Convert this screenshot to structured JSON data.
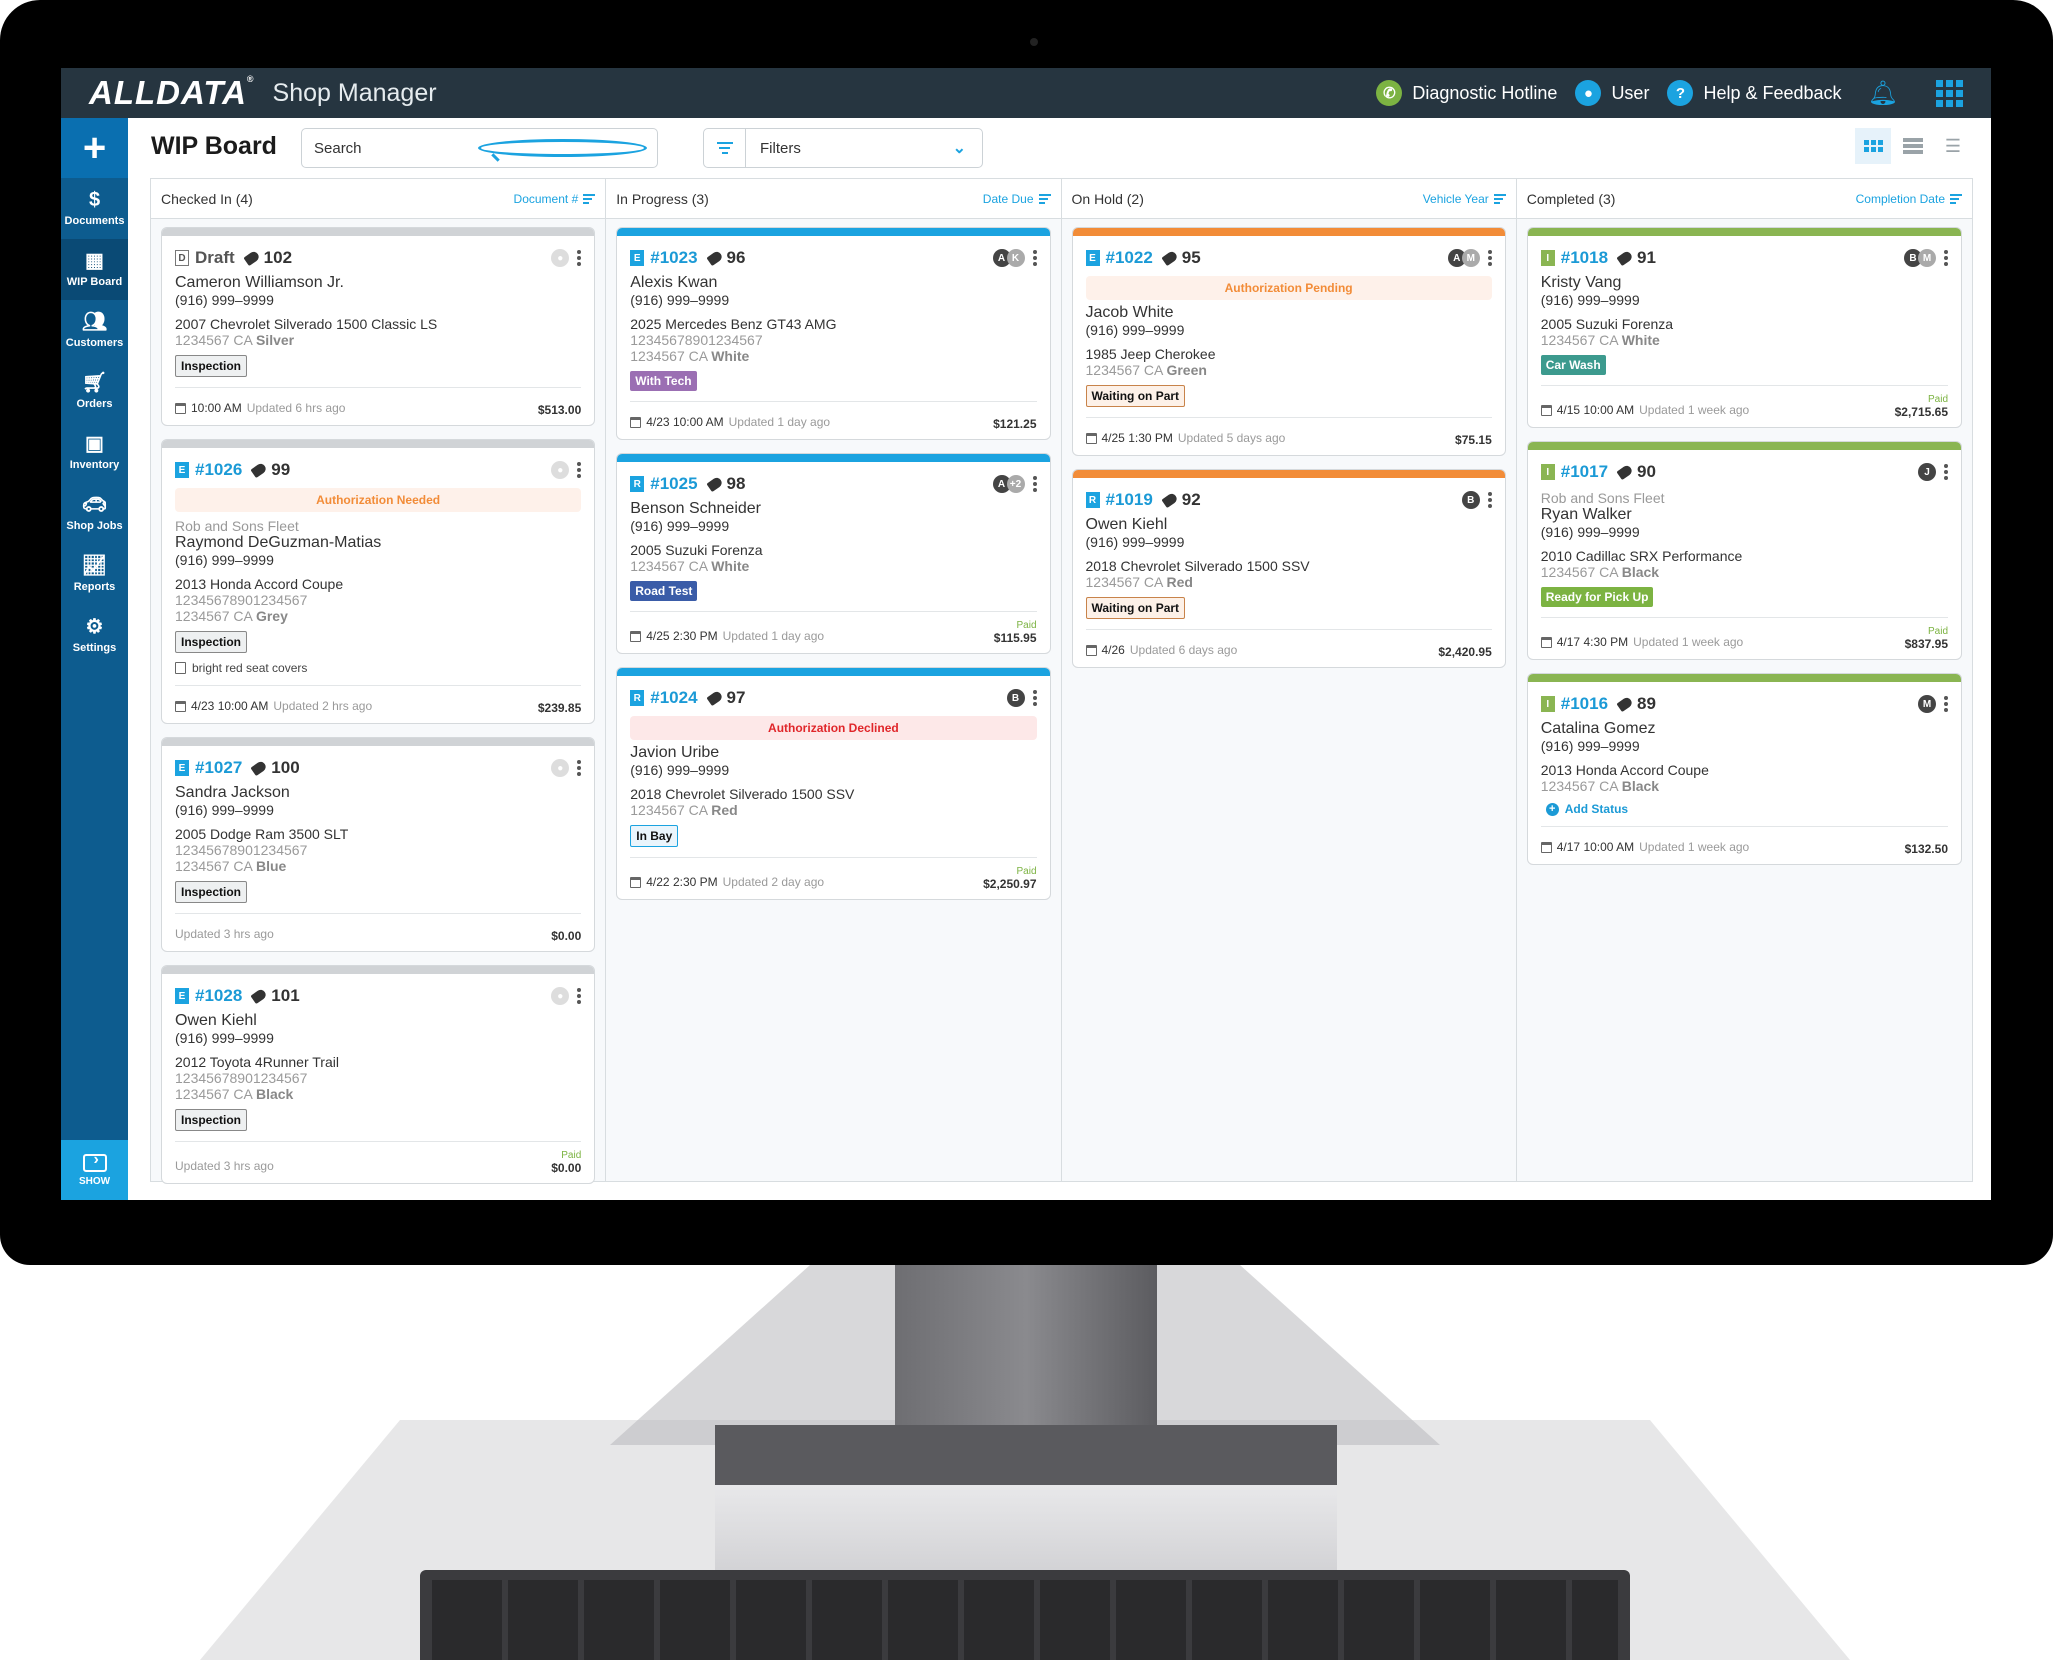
{
  "header": {
    "logo": "ALLDATA",
    "app_name": "Shop Manager",
    "hotline": "Diagnostic Hotline",
    "user": "User",
    "help": "Help & Feedback"
  },
  "sidebar": {
    "add_label": "+",
    "items": [
      {
        "label": "Documents",
        "icon": "document-dollar-icon"
      },
      {
        "label": "WIP Board",
        "icon": "grid-icon",
        "active": true
      },
      {
        "label": "Customers",
        "icon": "people-icon"
      },
      {
        "label": "Orders",
        "icon": "cart-icon"
      },
      {
        "label": "Inventory",
        "icon": "boxes-icon"
      },
      {
        "label": "Shop Jobs",
        "icon": "car-icon"
      },
      {
        "label": "Reports",
        "icon": "chart-icon"
      },
      {
        "label": "Settings",
        "icon": "gear-icon"
      }
    ],
    "show_label": "SHOW"
  },
  "page": {
    "title": "WIP Board",
    "search_placeholder": "Search",
    "filters_label": "Filters"
  },
  "colors": {
    "header_bg": "#263540",
    "sidebar_bg": "#0d5c8f",
    "accent": "#1ba3e0",
    "in_progress": "#1ba3e0",
    "on_hold": "#f28c38",
    "completed": "#8ab552",
    "draft": "#d0d3d6"
  },
  "columns": [
    {
      "title": "Checked In (4)",
      "sort": "Document #",
      "cards": [
        {
          "type": "D",
          "doc": "Draft",
          "tag": "102",
          "customer": "Cameron Williamson Jr.",
          "phone": "(916) 999–9999",
          "vehicle": "2007 Chevrolet Silverado 1500 Classic LS",
          "plate": "1234567 CA",
          "color": "Silver",
          "status": "Inspection",
          "time": "10:00 AM",
          "updated": "Updated 6 hrs ago",
          "amount": "$513.00"
        },
        {
          "type": "E",
          "doc": "#1026",
          "tag": "99",
          "auth": "Authorization Needed",
          "fleet": "Rob and Sons Fleet",
          "customer": "Raymond DeGuzman-Matias",
          "phone": "(916) 999–9999",
          "vehicle": "2013 Honda Accord Coupe",
          "vin": "12345678901234567",
          "plate": "1234567 CA",
          "color": "Grey",
          "status": "Inspection",
          "note": "bright red seat covers",
          "time": "4/23 10:00 AM",
          "updated": "Updated 2 hrs ago",
          "amount": "$239.85"
        },
        {
          "type": "E",
          "doc": "#1027",
          "tag": "100",
          "customer": "Sandra Jackson",
          "phone": "(916) 999–9999",
          "vehicle": "2005 Dodge Ram 3500 SLT",
          "vin": "12345678901234567",
          "plate": "1234567 CA",
          "color": "Blue",
          "status": "Inspection",
          "updated": "Updated 3 hrs ago",
          "amount": "$0.00"
        },
        {
          "type": "E",
          "doc": "#1028",
          "tag": "101",
          "customer": "Owen Kiehl",
          "phone": "(916) 999–9999",
          "vehicle": "2012 Toyota 4Runner Trail",
          "vin": "12345678901234567",
          "plate": "1234567 CA",
          "color": "Black",
          "status": "Inspection",
          "updated": "Updated 3 hrs ago",
          "paid": "Paid",
          "amount": "$0.00"
        }
      ]
    },
    {
      "title": "In Progress (3)",
      "sort": "Date Due",
      "cards": [
        {
          "type": "E",
          "doc": "#1023",
          "tag": "96",
          "avatars": [
            "A",
            "K"
          ],
          "customer": "Alexis Kwan",
          "phone": "(916) 999–9999",
          "vehicle": "2025 Mercedes Benz GT43 AMG",
          "vin": "12345678901234567",
          "plate": "1234567 CA",
          "color": "White",
          "status": "With Tech",
          "time": "4/23 10:00 AM",
          "updated": "Updated 1 day ago",
          "amount": "$121.25"
        },
        {
          "type": "R",
          "doc": "#1025",
          "tag": "98",
          "avatars": [
            "A",
            "+2"
          ],
          "customer": "Benson Schneider",
          "phone": "(916) 999–9999",
          "vehicle": "2005 Suzuki Forenza",
          "plate": "1234567 CA",
          "color": "White",
          "status": "Road Test",
          "time": "4/25 2:30 PM",
          "updated": "Updated 1 day ago",
          "paid": "Paid",
          "amount": "$115.95"
        },
        {
          "type": "R",
          "doc": "#1024",
          "tag": "97",
          "avatars": [
            "B"
          ],
          "auth": "Authorization Declined",
          "customer": "Javion Uribe",
          "phone": "(916) 999–9999",
          "vehicle": "2018 Chevrolet Silverado 1500 SSV",
          "plate": "1234567 CA",
          "color": "Red",
          "status": "In Bay",
          "time": "4/22 2:30 PM",
          "updated": "Updated 2 day ago",
          "paid": "Paid",
          "amount": "$2,250.97"
        }
      ]
    },
    {
      "title": "On Hold (2)",
      "sort": "Vehicle Year",
      "cards": [
        {
          "type": "E",
          "doc": "#1022",
          "tag": "95",
          "avatars": [
            "A",
            "M"
          ],
          "auth": "Authorization Pending",
          "customer": "Jacob White",
          "phone": "(916) 999–9999",
          "vehicle": "1985 Jeep Cherokee",
          "plate": "1234567 CA",
          "color": "Green",
          "status": "Waiting on Part",
          "time": "4/25 1:30 PM",
          "updated": "Updated 5 days ago",
          "amount": "$75.15"
        },
        {
          "type": "R",
          "doc": "#1019",
          "tag": "92",
          "avatars": [
            "B"
          ],
          "customer": "Owen Kiehl",
          "phone": "(916) 999–9999",
          "vehicle": "2018 Chevrolet Silverado 1500 SSV",
          "plate": "1234567 CA",
          "color": "Red",
          "status": "Waiting on Part",
          "time": "4/26",
          "updated": "Updated 6 days ago",
          "amount": "$2,420.95"
        }
      ]
    },
    {
      "title": "Completed (3)",
      "sort": "Completion Date",
      "cards": [
        {
          "type": "I",
          "doc": "#1018",
          "tag": "91",
          "avatars": [
            "B",
            "M"
          ],
          "customer": "Kristy Vang",
          "phone": "(916) 999–9999",
          "vehicle": "2005 Suzuki Forenza",
          "plate": "1234567 CA",
          "color": "White",
          "status": "Car Wash",
          "time": "4/15 10:00 AM",
          "updated": "Updated 1 week ago",
          "paid": "Paid",
          "amount": "$2,715.65"
        },
        {
          "type": "I",
          "doc": "#1017",
          "tag": "90",
          "avatars": [
            "J"
          ],
          "fleet": "Rob and Sons Fleet",
          "customer": "Ryan Walker",
          "phone": "(916) 999–9999",
          "vehicle": "2010 Cadillac SRX Performance",
          "plate": "1234567 CA",
          "color": "Black",
          "status": "Ready for Pick Up",
          "time": "4/17 4:30 PM",
          "updated": "Updated 1 week ago",
          "paid": "Paid",
          "amount": "$837.95"
        },
        {
          "type": "I",
          "doc": "#1016",
          "tag": "89",
          "avatars": [
            "M"
          ],
          "customer": "Catalina Gomez",
          "phone": "(916) 999–9999",
          "vehicle": "2013 Honda Accord Coupe",
          "plate": "1234567 CA",
          "color": "Black",
          "add_status": "Add Status",
          "time": "4/17 10:00 AM",
          "updated": "Updated 1 week ago",
          "amount": "$132.50"
        }
      ]
    }
  ]
}
